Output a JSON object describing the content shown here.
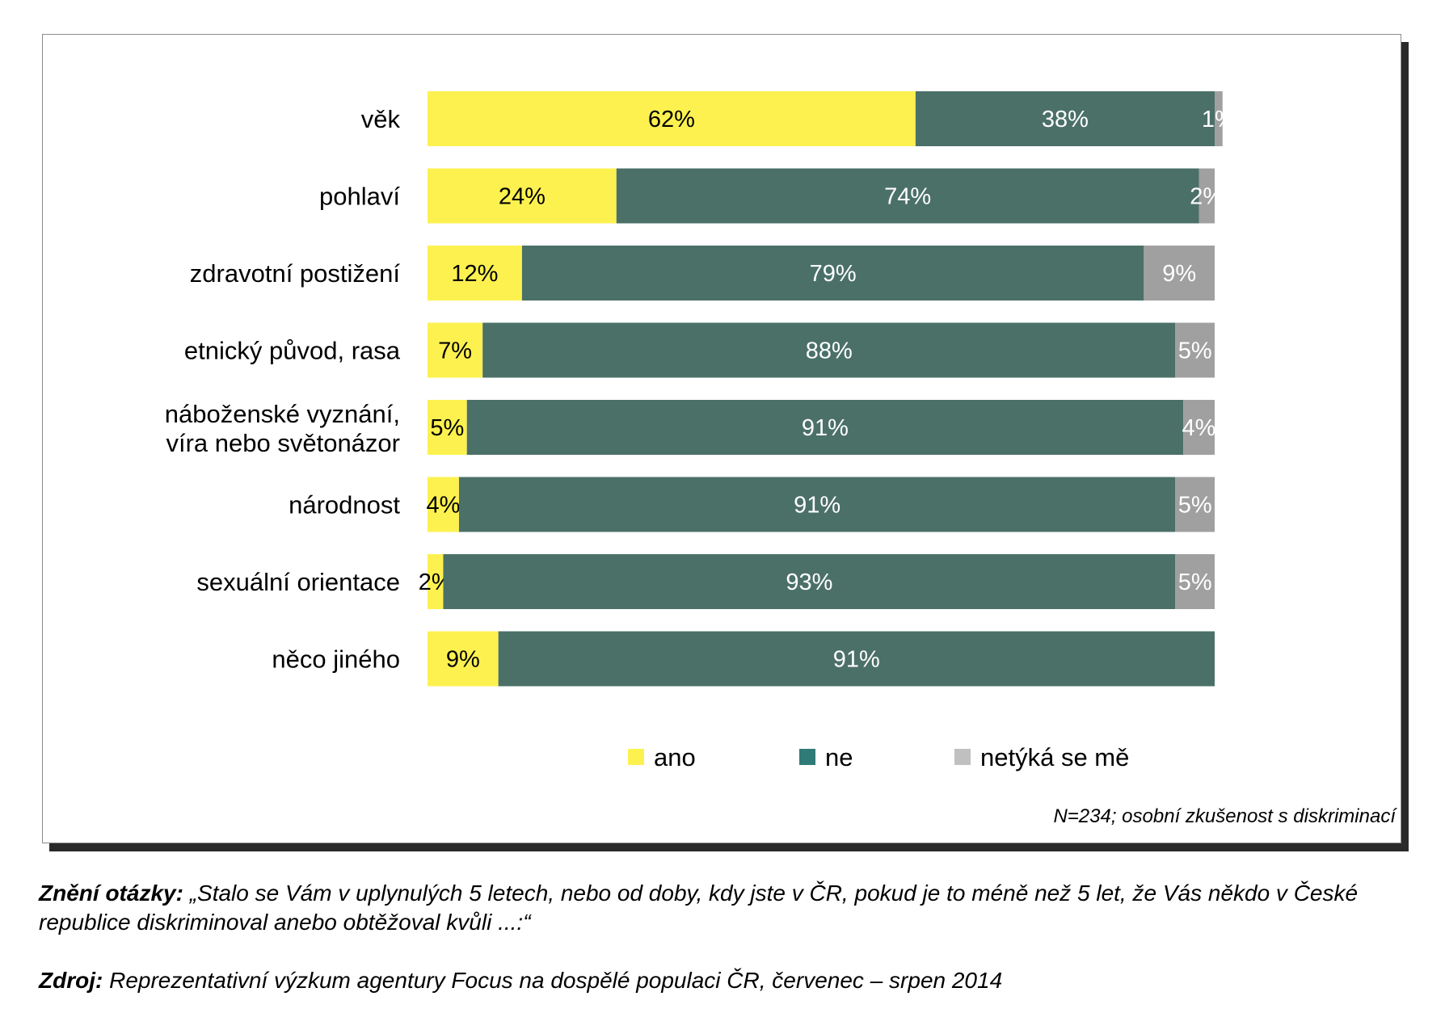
{
  "chart_data": {
    "type": "bar",
    "orientation": "horizontal",
    "stacked": true,
    "categories": [
      "věk",
      "pohlaví",
      "zdravotní postižení",
      "etnický původ, rasa",
      "náboženské vyznání, víra nebo světonázor",
      "národnost",
      "sexuální orientace",
      "něco jiného"
    ],
    "category_lines": [
      [
        "věk"
      ],
      [
        "pohlaví"
      ],
      [
        "zdravotní postižení"
      ],
      [
        "etnický původ, rasa"
      ],
      [
        "náboženské vyznání,",
        "víra nebo světonázor"
      ],
      [
        "národnost"
      ],
      [
        "sexuální orientace"
      ],
      [
        "něco jiného"
      ]
    ],
    "series": [
      {
        "name": "ano",
        "color": "#fdf150",
        "label_color": "#000000",
        "values": [
          62,
          24,
          12,
          7,
          5,
          4,
          2,
          9
        ]
      },
      {
        "name": "ne",
        "color": "#4b7068",
        "label_color": "#ffffff",
        "values": [
          38,
          74,
          79,
          88,
          91,
          91,
          93,
          91
        ]
      },
      {
        "name": "netýká se mě",
        "color": "#a0a0a0",
        "label_color": "#ffffff",
        "values": [
          1,
          2,
          9,
          5,
          4,
          5,
          5,
          0
        ]
      }
    ],
    "value_suffix": "%",
    "legend_position": "bottom",
    "legend_marker_colors": [
      "#fdf150",
      "#2f7b78",
      "#c0c0c0"
    ],
    "grid": false,
    "note": "N=234; osobní zkušenost s diskriminací"
  },
  "footnote": {
    "question_label": "Znění otázky:",
    "question_text": "„Stalo se Vám v uplynulých 5 letech, nebo od doby, kdy jste v ČR, pokud je to méně než 5 let, že Vás někdo v České republice diskriminoval anebo obtěžoval kvůli ...:“",
    "source_label": "Zdroj:",
    "source_text": "Reprezentativní výzkum agentury Focus na dospělé populaci ČR, červenec – srpen 2014"
  }
}
